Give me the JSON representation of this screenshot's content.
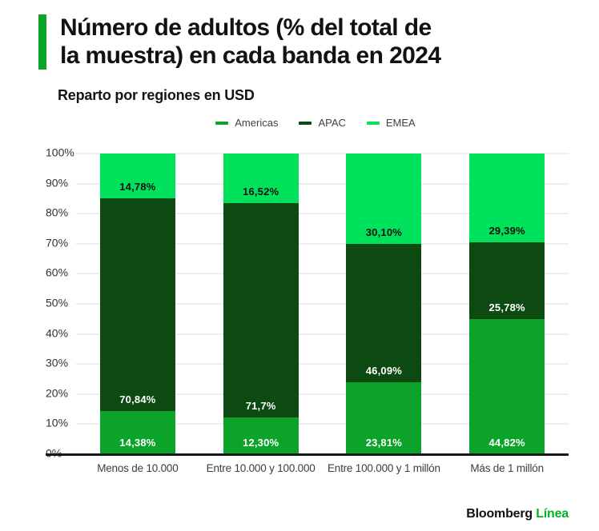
{
  "title": {
    "line1": "Número de adultos (% del total de",
    "line2": "la muestra) en cada banda en 2024"
  },
  "subtitle": "Reparto por regiones en USD",
  "footer": {
    "brand": "Bloomberg",
    "brand_accent": "Línea"
  },
  "colors": {
    "americas": "#0ba32a",
    "apac": "#0c4a11",
    "emea": "#00e25b",
    "accent_bar": "#0ba32a",
    "footer_accent": "#00b324",
    "grid": "#eeeeee",
    "axis": "#161616"
  },
  "chart_data": {
    "type": "bar",
    "stacked": true,
    "percent": true,
    "title": "Número de adultos (% del total de la muestra) en cada banda en 2024",
    "subtitle": "Reparto por regiones en USD",
    "legend_position": "top-center",
    "grid": true,
    "ylim": [
      0,
      100
    ],
    "y_ticks": [
      "100%",
      "90%",
      "80%",
      "70%",
      "60%",
      "50%",
      "40%",
      "30%",
      "20%",
      "10%",
      "0%"
    ],
    "categories": [
      "Menos de 10.000",
      "Entre 10.000 y 100.000",
      "Entre 100.000 y 1 millón",
      "Más de 1 millón"
    ],
    "series": [
      {
        "name": "Americas",
        "color_key": "americas",
        "label_color": "#ffffff",
        "values": [
          14.38,
          12.3,
          23.81,
          44.82
        ],
        "labels": [
          "14,38%",
          "12,30%",
          "23,81%",
          "44,82%"
        ]
      },
      {
        "name": "APAC",
        "color_key": "apac",
        "label_color": "#ffffff",
        "values": [
          70.84,
          71.7,
          46.09,
          25.78
        ],
        "labels": [
          "70,84%",
          "71,7%",
          "46,09%",
          "25,78%"
        ]
      },
      {
        "name": "EMEA",
        "color_key": "emea",
        "label_color": "#111111",
        "values": [
          14.78,
          16.52,
          30.1,
          29.39
        ],
        "labels": [
          "14,78%",
          "16,52%",
          "30,10%",
          "29,39%"
        ]
      }
    ]
  }
}
